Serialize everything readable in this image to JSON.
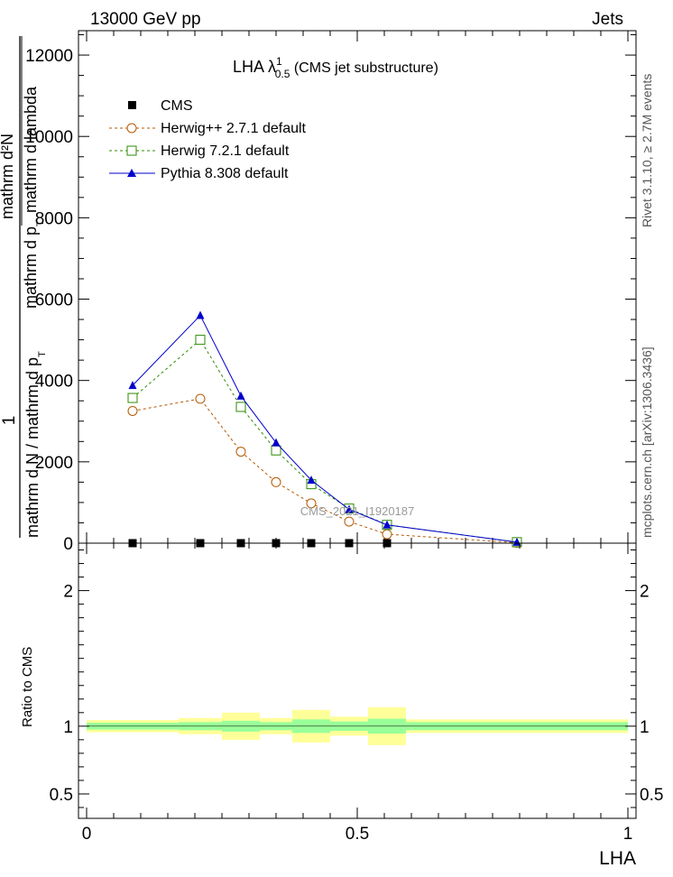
{
  "header": {
    "left": "13000 GeV pp",
    "right": "Jets"
  },
  "title": {
    "main": "LHA λ",
    "sup": "1",
    "sub": "0.5",
    "suffix": " (CMS jet substructure)"
  },
  "side_labels": {
    "rivet": "Rivet 3.1.10, ≥ 2.7M events",
    "mcplots": "mcplots.cern.ch [arXiv:1306.3436]"
  },
  "watermark": "CMS_2021_I1920187",
  "y_label_main": {
    "numerator_one": "1",
    "denominator": "mathrm d N / mathrm d p",
    "sub_t": "T",
    "numerator_stack": "mathrm d²N",
    "numerator_stack2": "mathrm d p",
    "numerator_stack3": "mathrm d lambda"
  },
  "y_label_ratio": "Ratio to CMS",
  "x_label": "LHA",
  "legend": [
    {
      "label": "CMS",
      "color": "#000000",
      "marker": "square-filled"
    },
    {
      "label": "Herwig++ 2.7.1 default",
      "color": "#b35900",
      "marker": "circle-open"
    },
    {
      "label": "Herwig 7.2.1 default",
      "color": "#2e8b00",
      "marker": "square-open"
    },
    {
      "label": "Pythia 8.308 default",
      "color": "#0000cc",
      "marker": "triangle-filled"
    }
  ],
  "chart_data": [
    {
      "type": "line",
      "panel": "main",
      "xlim": [
        -0.015,
        1.015
      ],
      "ylim": [
        0,
        12600
      ],
      "yticks": [
        0,
        2000,
        4000,
        6000,
        8000,
        10000,
        12000
      ],
      "ytick_labels": [
        "0",
        "2000",
        "4000",
        "6000",
        "8000",
        "10000",
        "12000"
      ],
      "series": [
        {
          "name": "CMS",
          "x": [
            0.085,
            0.21,
            0.285,
            0.35,
            0.415,
            0.485,
            0.555,
            0.795
          ],
          "y": [
            0,
            0,
            0,
            0,
            0,
            0,
            0,
            0
          ]
        },
        {
          "name": "Herwig++ 2.7.1 default",
          "x": [
            0.085,
            0.21,
            0.285,
            0.35,
            0.415,
            0.485,
            0.555,
            0.795
          ],
          "y": [
            3250,
            3550,
            2250,
            1500,
            980,
            530,
            220,
            10
          ]
        },
        {
          "name": "Herwig 7.2.1 default",
          "x": [
            0.085,
            0.21,
            0.285,
            0.35,
            0.415,
            0.485,
            0.555,
            0.795
          ],
          "y": [
            3570,
            5000,
            3350,
            2280,
            1450,
            850,
            450,
            25
          ]
        },
        {
          "name": "Pythia 8.308 default",
          "x": [
            0.085,
            0.21,
            0.285,
            0.35,
            0.415,
            0.485,
            0.555,
            0.795
          ],
          "y": [
            3880,
            5600,
            3620,
            2470,
            1550,
            830,
            450,
            25
          ]
        }
      ]
    },
    {
      "type": "area",
      "panel": "ratio",
      "xlim": [
        -0.015,
        1.015
      ],
      "ylim": [
        0.32,
        2.35
      ],
      "yticks": [
        0.5,
        1,
        2
      ],
      "ytick_labels": [
        "0.5",
        "1",
        "2"
      ],
      "xticks": [
        0,
        0.5,
        1
      ],
      "xtick_labels": [
        "0",
        "0.5",
        "1"
      ],
      "bins": [
        {
          "x0": 0.0,
          "x1": 0.17,
          "inner": [
            0.975,
            1.025
          ],
          "outer": [
            0.955,
            1.045
          ]
        },
        {
          "x0": 0.17,
          "x1": 0.25,
          "inner": [
            0.97,
            1.03
          ],
          "outer": [
            0.94,
            1.06
          ]
        },
        {
          "x0": 0.25,
          "x1": 0.32,
          "inner": [
            0.96,
            1.04
          ],
          "outer": [
            0.9,
            1.1
          ]
        },
        {
          "x0": 0.32,
          "x1": 0.38,
          "inner": [
            0.97,
            1.03
          ],
          "outer": [
            0.94,
            1.06
          ]
        },
        {
          "x0": 0.38,
          "x1": 0.45,
          "inner": [
            0.95,
            1.05
          ],
          "outer": [
            0.88,
            1.12
          ]
        },
        {
          "x0": 0.45,
          "x1": 0.52,
          "inner": [
            0.965,
            1.035
          ],
          "outer": [
            0.93,
            1.07
          ]
        },
        {
          "x0": 0.52,
          "x1": 0.59,
          "inner": [
            0.945,
            1.055
          ],
          "outer": [
            0.86,
            1.14
          ]
        },
        {
          "x0": 0.59,
          "x1": 1.0,
          "inner": [
            0.97,
            1.03
          ],
          "outer": [
            0.95,
            1.05
          ]
        }
      ]
    }
  ]
}
